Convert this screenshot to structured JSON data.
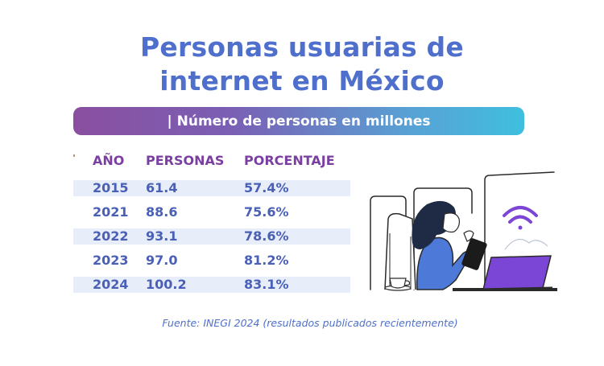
{
  "title_line1": "Personas usuarias de",
  "title_line2": "internet en México",
  "subtitle": "| Número de personas en millones",
  "columns": [
    "AÑO",
    "PERSONAS",
    "PORCENTAJE"
  ],
  "rows": [
    {
      "year": "2015",
      "people": "61.4",
      "percent": "57.4%"
    },
    {
      "year": "2021",
      "people": "88.6",
      "percent": "75.6%"
    },
    {
      "year": "2022",
      "people": "93.1",
      "percent": "78.6%"
    },
    {
      "year": "2023",
      "people": "97.0",
      "percent": "81.2%"
    },
    {
      "year": "2024",
      "people": "100.2",
      "percent": "83.1%"
    }
  ],
  "source": "Fuente: INEGI 2024 (resultados publicados recientemente)",
  "chart_data": {
    "type": "table",
    "title": "Personas usuarias de internet en México",
    "subtitle": "| Número de personas en millones",
    "columns": [
      "AÑO",
      "PERSONAS",
      "PORCENTAJE"
    ],
    "categories": [
      "2015",
      "2021",
      "2022",
      "2023",
      "2024"
    ],
    "series": [
      {
        "name": "PERSONAS",
        "values": [
          61.4,
          88.6,
          93.1,
          97.0,
          100.2
        ]
      },
      {
        "name": "PORCENTAJE",
        "values": [
          57.4,
          75.6,
          78.6,
          81.2,
          83.1
        ]
      }
    ]
  },
  "colors": {
    "title": "#4f6fcc",
    "header": "#7a3fa0",
    "value": "#4a5fb6",
    "row_shade": "#e8eef9",
    "banner_start": "#8a4fa0",
    "banner_end": "#3fbfde",
    "accent_purple": "#7b45d6"
  },
  "illustration": {
    "icons": [
      "person-with-tablet-icon",
      "wifi-icon",
      "laptop-icon",
      "coffee-cup-icon",
      "window-icon"
    ]
  }
}
